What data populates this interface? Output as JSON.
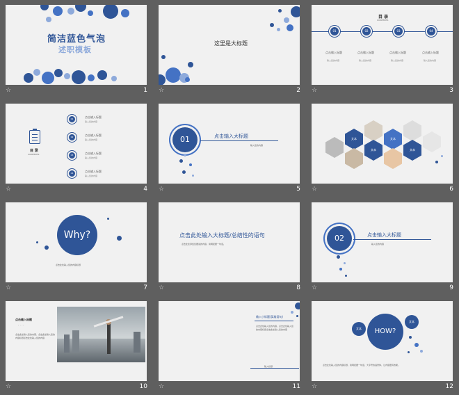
{
  "slides": [
    {
      "number": "1",
      "title_line1": "简洁蓝色气泡",
      "title_line2": "述职模板"
    },
    {
      "number": "2",
      "title": "这里是大标题"
    },
    {
      "number": "3",
      "heading": "目 录",
      "heading_en": "CONTENTS",
      "items": [
        {
          "num": "01",
          "label": "点击输入标题",
          "desc": "输入您的内容"
        },
        {
          "num": "02",
          "label": "点击输入标题",
          "desc": "输入您的内容"
        },
        {
          "num": "03",
          "label": "点击输入标题",
          "desc": "输入您的内容"
        },
        {
          "num": "04",
          "label": "点击输入标题",
          "desc": "输入您的内容"
        }
      ]
    },
    {
      "number": "4",
      "heading": "目 录",
      "heading_en": "CONTENTS",
      "items": [
        {
          "num": "01",
          "label": "点击输入标题",
          "desc": "输入您的内容"
        },
        {
          "num": "02",
          "label": "点击输入标题",
          "desc": "输入您的内容"
        },
        {
          "num": "03",
          "label": "点击输入标题",
          "desc": "输入您的内容"
        },
        {
          "num": "04",
          "label": "点击输入标题",
          "desc": "输入您的内容"
        }
      ]
    },
    {
      "number": "5",
      "badge": "01",
      "title": "点击输入大标题",
      "subtitle": "输入您的内容"
    },
    {
      "number": "6",
      "hex_labels": [
        "文本",
        "文本",
        "文本",
        "文本"
      ]
    },
    {
      "number": "7",
      "circle": "Why?",
      "caption": "点击此处输入您的内容标题"
    },
    {
      "number": "8",
      "title": "点击此处输入大标题/总结性的语句",
      "body": "点击此处添加您要说的内容，简明扼要一句话。"
    },
    {
      "number": "9",
      "badge": "02",
      "title": "点击输入大标题",
      "subtitle": "输入您的内容"
    },
    {
      "number": "10",
      "heading": "点击输入标题",
      "dots": "· · ·",
      "body": "点击此处输入您的内容，点击此处输入您的内容标题点击此处输入您的内容"
    },
    {
      "number": "11",
      "heading": "输入小标题(英雄语句)",
      "body": "点击此处输入您的内容，点击此处输入您的内容标题点击此处输入您的内容",
      "footer": "输入标题"
    },
    {
      "number": "12",
      "circle": "HOW?",
      "bubble_a": "文本",
      "bubble_b": "文本",
      "caption": "点击此处输入您的内容标题，简明扼要一句话，大字号的语录体，让内容更有效果。"
    }
  ],
  "colors": {
    "primary": "#2f5597",
    "light": "#8eaadb",
    "mid": "#4472c4",
    "bg": "#f1f1f1"
  },
  "icons": {
    "slide_star": "star-icon",
    "clipboard": "clipboard-icon"
  },
  "star_glyph": "☆"
}
